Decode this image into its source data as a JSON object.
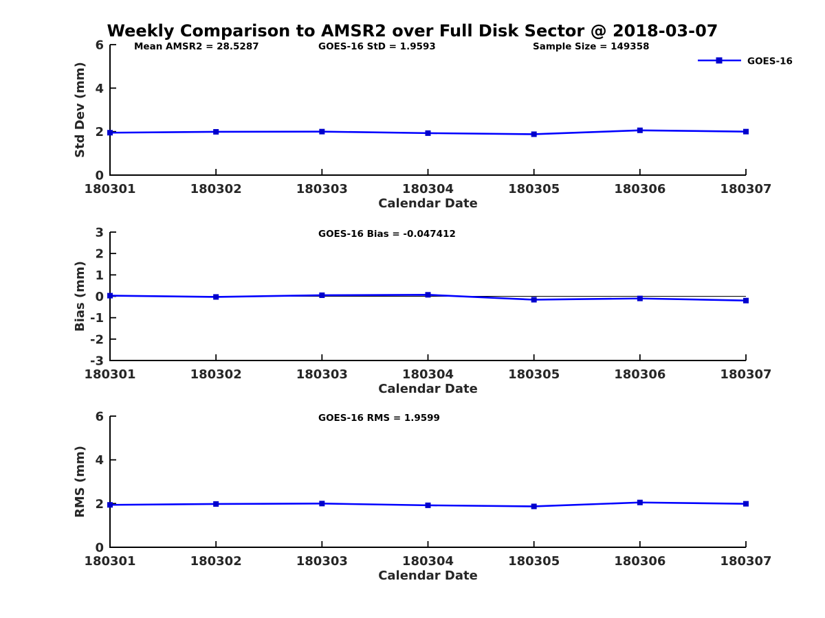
{
  "page": {
    "title": "Weekly Comparison to AMSR2 over Full Disk Sector @ 2018-03-07",
    "background": "#ffffff"
  },
  "legend": {
    "label": "GOES-16",
    "position": "top-right"
  },
  "colors": {
    "series_line": "#0000ff",
    "series_marker": "#0000cc",
    "axis": "#000000",
    "tick_label": "#262626",
    "annotation": "#000000",
    "zero_line": "#000000"
  },
  "chart_data": [
    {
      "id": "std-dev",
      "type": "line",
      "annotations": [
        "Mean AMSR2 = 28.5287",
        "GOES-16 StD = 1.9593",
        "Sample Size = 149358"
      ],
      "x": [
        "180301",
        "180302",
        "180303",
        "180304",
        "180305",
        "180306",
        "180307"
      ],
      "series": [
        {
          "name": "GOES-16",
          "values": [
            1.95,
            1.99,
            2.0,
            1.93,
            1.88,
            2.06,
            2.0
          ]
        }
      ],
      "xlabel": "Calendar Date",
      "ylabel": "Std Dev (mm)",
      "ylim": [
        0,
        6
      ],
      "yticks": [
        0,
        2,
        4,
        6
      ],
      "grid": false,
      "zero_line": false,
      "show_legend": true
    },
    {
      "id": "bias",
      "type": "line",
      "annotations": [
        "GOES-16 Bias  = -0.047412"
      ],
      "x": [
        "180301",
        "180302",
        "180303",
        "180304",
        "180305",
        "180306",
        "180307"
      ],
      "series": [
        {
          "name": "GOES-16",
          "values": [
            0.03,
            -0.03,
            0.05,
            0.07,
            -0.16,
            -0.1,
            -0.2
          ]
        }
      ],
      "xlabel": "Calendar Date",
      "ylabel": "Bias (mm)",
      "ylim": [
        -3,
        3
      ],
      "yticks": [
        -3,
        -2,
        -1,
        0,
        1,
        2,
        3
      ],
      "grid": false,
      "zero_line": true,
      "show_legend": false
    },
    {
      "id": "rms",
      "type": "line",
      "annotations": [
        "GOES-16 RMS = 1.9599"
      ],
      "x": [
        "180301",
        "180302",
        "180303",
        "180304",
        "180305",
        "180306",
        "180307"
      ],
      "series": [
        {
          "name": "GOES-16",
          "values": [
            1.94,
            1.98,
            2.0,
            1.92,
            1.87,
            2.05,
            1.99
          ]
        }
      ],
      "xlabel": "Calendar Date",
      "ylabel": "RMS (mm)",
      "ylim": [
        0,
        6
      ],
      "yticks": [
        0,
        2,
        4,
        6
      ],
      "grid": false,
      "zero_line": false,
      "show_legend": false
    }
  ]
}
